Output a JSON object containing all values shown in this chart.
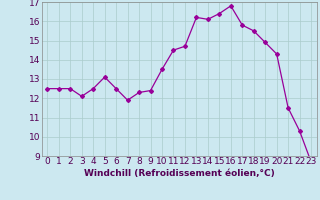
{
  "x": [
    0,
    1,
    2,
    3,
    4,
    5,
    6,
    7,
    8,
    9,
    10,
    11,
    12,
    13,
    14,
    15,
    16,
    17,
    18,
    19,
    20,
    21,
    22,
    23
  ],
  "y": [
    12.5,
    12.5,
    12.5,
    12.1,
    12.5,
    13.1,
    12.5,
    11.9,
    12.3,
    12.4,
    13.5,
    14.5,
    14.7,
    16.2,
    16.1,
    16.4,
    16.8,
    15.8,
    15.5,
    14.9,
    14.3,
    11.5,
    10.3,
    8.7
  ],
  "xlabel": "Windchill (Refroidissement éolien,°C)",
  "ylim": [
    9,
    17
  ],
  "xlim": [
    -0.5,
    23.5
  ],
  "yticks": [
    9,
    10,
    11,
    12,
    13,
    14,
    15,
    16,
    17
  ],
  "xtick_labels": [
    "0",
    "1",
    "2",
    "3",
    "4",
    "5",
    "6",
    "7",
    "8",
    "9",
    "10",
    "11",
    "12",
    "13",
    "14",
    "15",
    "16",
    "17",
    "18",
    "19",
    "20",
    "21",
    "22",
    "23"
  ],
  "line_color": "#990099",
  "marker_color": "#990099",
  "bg_color": "#cce8f0",
  "grid_color": "#aacccc",
  "xlabel_fontsize": 6.5,
  "tick_fontsize": 6.5,
  "marker": "D",
  "markersize": 2.0,
  "linewidth": 0.9
}
